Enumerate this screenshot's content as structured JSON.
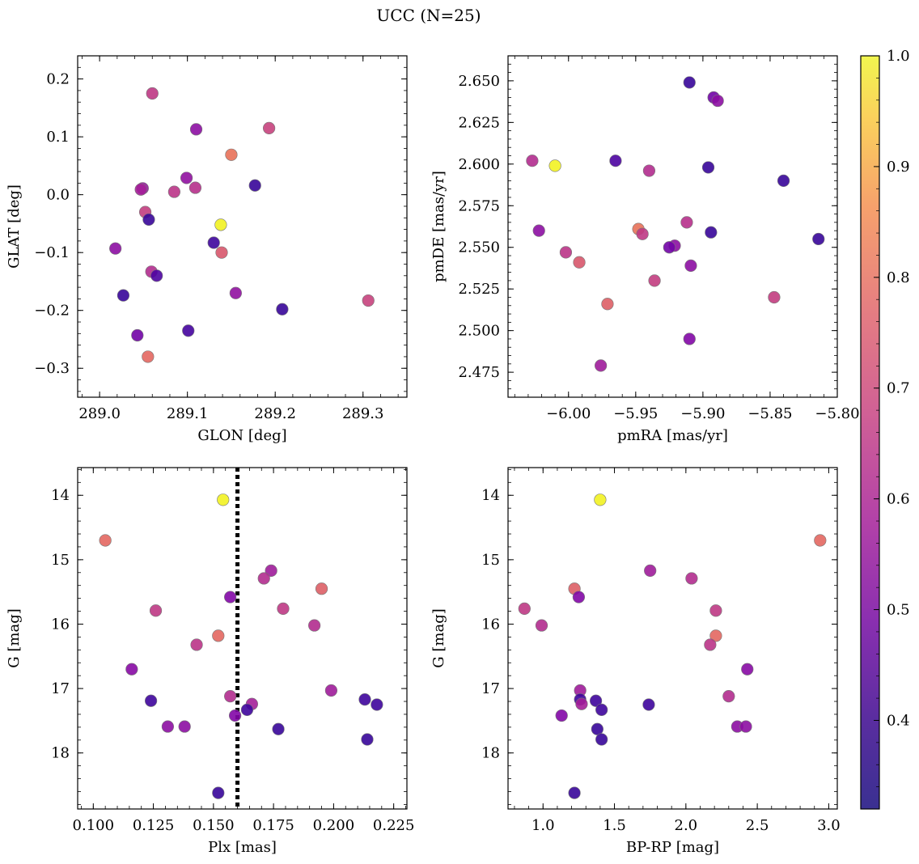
{
  "title": "UCC (N=25)",
  "colorbar": {
    "range": [
      0.32,
      1.0
    ],
    "ticks": [
      "0.4",
      "0.5",
      "0.6",
      "0.7",
      "0.8",
      "0.9",
      "1.0"
    ],
    "tick_values": [
      0.4,
      0.5,
      0.6,
      0.7,
      0.8,
      0.9,
      1.0
    ],
    "colormap": "plasma"
  },
  "chart_data": [
    {
      "type": "scatter",
      "title": "",
      "xlabel": "GLON [deg]",
      "ylabel": "GLAT [deg]",
      "xlim": [
        288.975,
        289.35
      ],
      "ylim": [
        -0.35,
        0.24
      ],
      "x_ticks": [
        "289.0",
        "289.1",
        "289.2",
        "289.3"
      ],
      "x_tick_values": [
        289.0,
        289.1,
        289.2,
        289.3
      ],
      "y_ticks": [
        "0.2",
        "0.1",
        "0.0",
        "−0.1",
        "−0.2",
        "−0.3"
      ],
      "y_tick_values": [
        0.2,
        0.1,
        0.0,
        -0.1,
        -0.2,
        -0.3
      ],
      "points": [
        {
          "x": 289.06,
          "y": 0.175,
          "c": 0.63
        },
        {
          "x": 289.11,
          "y": 0.113,
          "c": 0.52
        },
        {
          "x": 289.193,
          "y": 0.115,
          "c": 0.65
        },
        {
          "x": 289.15,
          "y": 0.069,
          "c": 0.76
        },
        {
          "x": 289.099,
          "y": 0.029,
          "c": 0.53
        },
        {
          "x": 289.177,
          "y": 0.016,
          "c": 0.38
        },
        {
          "x": 289.109,
          "y": 0.012,
          "c": 0.61
        },
        {
          "x": 289.049,
          "y": 0.011,
          "c": 0.54
        },
        {
          "x": 289.047,
          "y": 0.009,
          "c": 0.57
        },
        {
          "x": 289.085,
          "y": 0.005,
          "c": 0.62
        },
        {
          "x": 289.052,
          "y": -0.03,
          "c": 0.64
        },
        {
          "x": 289.056,
          "y": -0.043,
          "c": 0.38
        },
        {
          "x": 289.138,
          "y": -0.052,
          "c": 0.99
        },
        {
          "x": 289.13,
          "y": -0.083,
          "c": 0.39
        },
        {
          "x": 289.018,
          "y": -0.093,
          "c": 0.52
        },
        {
          "x": 289.139,
          "y": -0.1,
          "c": 0.7
        },
        {
          "x": 289.059,
          "y": -0.133,
          "c": 0.6
        },
        {
          "x": 289.065,
          "y": -0.14,
          "c": 0.41
        },
        {
          "x": 289.155,
          "y": -0.17,
          "c": 0.53
        },
        {
          "x": 289.027,
          "y": -0.174,
          "c": 0.38
        },
        {
          "x": 289.306,
          "y": -0.183,
          "c": 0.65
        },
        {
          "x": 289.208,
          "y": -0.198,
          "c": 0.38
        },
        {
          "x": 289.101,
          "y": -0.235,
          "c": 0.4
        },
        {
          "x": 289.043,
          "y": -0.243,
          "c": 0.47
        },
        {
          "x": 289.055,
          "y": -0.28,
          "c": 0.74
        }
      ]
    },
    {
      "type": "scatter",
      "title": "",
      "xlabel": "pmRA [mas/yr]",
      "ylabel": "pmDE [mas/yr]",
      "xlim": [
        -6.045,
        -5.8
      ],
      "ylim": [
        2.46,
        2.665
      ],
      "x_ticks": [
        "−6.00",
        "−5.95",
        "−5.90",
        "−5.85",
        "−5.80"
      ],
      "x_tick_values": [
        -6.0,
        -5.95,
        -5.9,
        -5.85,
        -5.8
      ],
      "y_ticks": [
        "2.650",
        "2.625",
        "2.600",
        "2.575",
        "2.550",
        "2.525",
        "2.500",
        "2.475"
      ],
      "y_tick_values": [
        2.65,
        2.625,
        2.6,
        2.575,
        2.55,
        2.525,
        2.5,
        2.475
      ],
      "points": [
        {
          "x": -5.91,
          "y": 2.649,
          "c": 0.38
        },
        {
          "x": -5.892,
          "y": 2.64,
          "c": 0.47
        },
        {
          "x": -5.889,
          "y": 2.638,
          "c": 0.52
        },
        {
          "x": -6.027,
          "y": 2.602,
          "c": 0.6
        },
        {
          "x": -5.965,
          "y": 2.602,
          "c": 0.41
        },
        {
          "x": -6.01,
          "y": 2.599,
          "c": 0.99
        },
        {
          "x": -5.896,
          "y": 2.598,
          "c": 0.38
        },
        {
          "x": -5.94,
          "y": 2.596,
          "c": 0.6
        },
        {
          "x": -5.84,
          "y": 2.59,
          "c": 0.38
        },
        {
          "x": -5.912,
          "y": 2.565,
          "c": 0.61
        },
        {
          "x": -5.948,
          "y": 2.561,
          "c": 0.76
        },
        {
          "x": -6.022,
          "y": 2.56,
          "c": 0.52
        },
        {
          "x": -5.894,
          "y": 2.559,
          "c": 0.38
        },
        {
          "x": -5.945,
          "y": 2.558,
          "c": 0.63
        },
        {
          "x": -5.814,
          "y": 2.555,
          "c": 0.38
        },
        {
          "x": -5.921,
          "y": 2.551,
          "c": 0.52
        },
        {
          "x": -5.925,
          "y": 2.55,
          "c": 0.47
        },
        {
          "x": -6.002,
          "y": 2.547,
          "c": 0.62
        },
        {
          "x": -5.992,
          "y": 2.541,
          "c": 0.7
        },
        {
          "x": -5.909,
          "y": 2.539,
          "c": 0.52
        },
        {
          "x": -5.936,
          "y": 2.53,
          "c": 0.64
        },
        {
          "x": -5.847,
          "y": 2.52,
          "c": 0.64
        },
        {
          "x": -5.971,
          "y": 2.516,
          "c": 0.72
        },
        {
          "x": -5.91,
          "y": 2.495,
          "c": 0.5
        },
        {
          "x": -5.976,
          "y": 2.479,
          "c": 0.56
        }
      ]
    },
    {
      "type": "scatter",
      "title": "",
      "xlabel": "Plx [mas]",
      "ylabel": "G [mag]",
      "xlim": [
        0.0935,
        0.2305
      ],
      "ylim": [
        18.87,
        13.57
      ],
      "y_inverted": true,
      "x_ticks": [
        "0.100",
        "0.125",
        "0.150",
        "0.175",
        "0.200",
        "0.225"
      ],
      "x_tick_values": [
        0.1,
        0.125,
        0.15,
        0.175,
        0.2,
        0.225
      ],
      "y_ticks": [
        "14",
        "15",
        "16",
        "17",
        "18"
      ],
      "y_tick_values": [
        14,
        15,
        16,
        17,
        18
      ],
      "vline": {
        "x": 0.16,
        "style": "dotted",
        "color": "#000000"
      },
      "points": [
        {
          "x": 0.154,
          "y": 14.07,
          "c": 0.99
        },
        {
          "x": 0.105,
          "y": 14.7,
          "c": 0.74
        },
        {
          "x": 0.174,
          "y": 15.17,
          "c": 0.56
        },
        {
          "x": 0.171,
          "y": 15.29,
          "c": 0.6
        },
        {
          "x": 0.195,
          "y": 15.45,
          "c": 0.72
        },
        {
          "x": 0.157,
          "y": 15.58,
          "c": 0.5
        },
        {
          "x": 0.179,
          "y": 15.76,
          "c": 0.63
        },
        {
          "x": 0.126,
          "y": 15.79,
          "c": 0.63
        },
        {
          "x": 0.192,
          "y": 16.02,
          "c": 0.6
        },
        {
          "x": 0.152,
          "y": 16.18,
          "c": 0.74
        },
        {
          "x": 0.143,
          "y": 16.32,
          "c": 0.62
        },
        {
          "x": 0.116,
          "y": 16.7,
          "c": 0.51
        },
        {
          "x": 0.199,
          "y": 17.03,
          "c": 0.56
        },
        {
          "x": 0.157,
          "y": 17.12,
          "c": 0.6
        },
        {
          "x": 0.124,
          "y": 17.19,
          "c": 0.39
        },
        {
          "x": 0.213,
          "y": 17.17,
          "c": 0.39
        },
        {
          "x": 0.166,
          "y": 17.24,
          "c": 0.57
        },
        {
          "x": 0.218,
          "y": 17.25,
          "c": 0.39
        },
        {
          "x": 0.164,
          "y": 17.33,
          "c": 0.39
        },
        {
          "x": 0.159,
          "y": 17.42,
          "c": 0.5
        },
        {
          "x": 0.131,
          "y": 17.59,
          "c": 0.52
        },
        {
          "x": 0.138,
          "y": 17.59,
          "c": 0.52
        },
        {
          "x": 0.177,
          "y": 17.63,
          "c": 0.38
        },
        {
          "x": 0.214,
          "y": 17.79,
          "c": 0.38
        },
        {
          "x": 0.152,
          "y": 18.62,
          "c": 0.38
        }
      ]
    },
    {
      "type": "scatter",
      "title": "",
      "xlabel": "BP-RP [mag]",
      "ylabel": "G [mag]",
      "xlim": [
        0.755,
        3.06
      ],
      "ylim": [
        18.87,
        13.57
      ],
      "y_inverted": true,
      "x_ticks": [
        "1.0",
        "1.5",
        "2.0",
        "2.5",
        "3.0"
      ],
      "x_tick_values": [
        1.0,
        1.5,
        2.0,
        2.5,
        3.0
      ],
      "y_ticks": [
        "14",
        "15",
        "16",
        "17",
        "18"
      ],
      "y_tick_values": [
        14,
        15,
        16,
        17,
        18
      ],
      "points": [
        {
          "x": 1.4,
          "y": 14.07,
          "c": 0.99
        },
        {
          "x": 2.94,
          "y": 14.7,
          "c": 0.74
        },
        {
          "x": 1.75,
          "y": 15.17,
          "c": 0.56
        },
        {
          "x": 2.04,
          "y": 15.29,
          "c": 0.6
        },
        {
          "x": 1.22,
          "y": 15.45,
          "c": 0.72
        },
        {
          "x": 1.25,
          "y": 15.58,
          "c": 0.5
        },
        {
          "x": 0.87,
          "y": 15.76,
          "c": 0.63
        },
        {
          "x": 2.21,
          "y": 15.79,
          "c": 0.63
        },
        {
          "x": 0.99,
          "y": 16.02,
          "c": 0.6
        },
        {
          "x": 2.21,
          "y": 16.18,
          "c": 0.74
        },
        {
          "x": 2.17,
          "y": 16.32,
          "c": 0.62
        },
        {
          "x": 2.43,
          "y": 16.7,
          "c": 0.51
        },
        {
          "x": 1.26,
          "y": 17.03,
          "c": 0.56
        },
        {
          "x": 2.3,
          "y": 17.12,
          "c": 0.6
        },
        {
          "x": 1.26,
          "y": 17.17,
          "c": 0.39
        },
        {
          "x": 1.37,
          "y": 17.19,
          "c": 0.39
        },
        {
          "x": 1.27,
          "y": 17.24,
          "c": 0.57
        },
        {
          "x": 1.74,
          "y": 17.25,
          "c": 0.39
        },
        {
          "x": 1.41,
          "y": 17.33,
          "c": 0.39
        },
        {
          "x": 1.13,
          "y": 17.42,
          "c": 0.5
        },
        {
          "x": 2.36,
          "y": 17.59,
          "c": 0.52
        },
        {
          "x": 2.42,
          "y": 17.59,
          "c": 0.52
        },
        {
          "x": 1.38,
          "y": 17.63,
          "c": 0.38
        },
        {
          "x": 1.41,
          "y": 17.79,
          "c": 0.38
        },
        {
          "x": 1.22,
          "y": 18.62,
          "c": 0.38
        }
      ]
    }
  ]
}
